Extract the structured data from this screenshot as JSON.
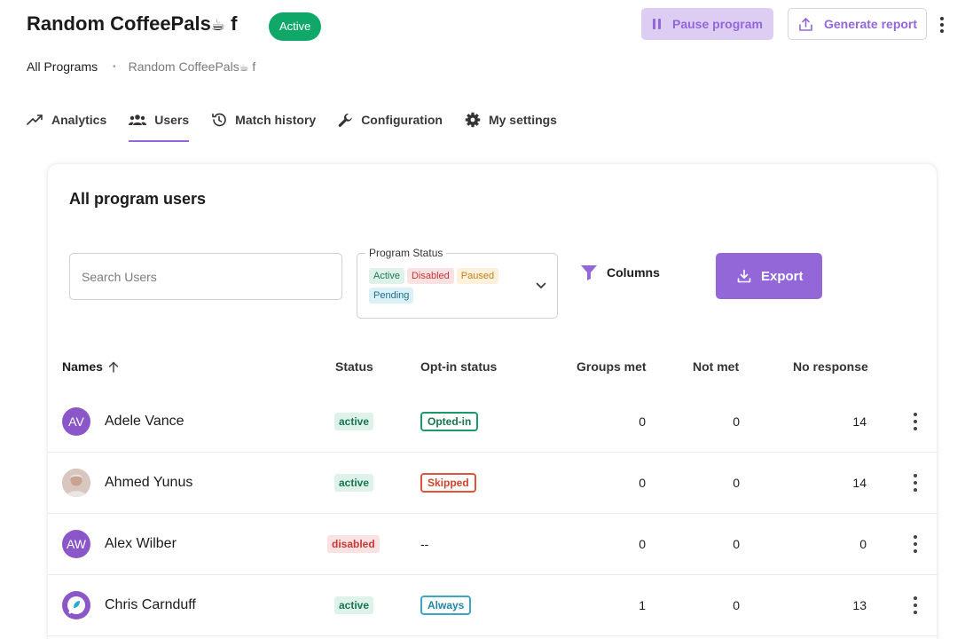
{
  "header": {
    "title": "Random CoffeePals",
    "title_emoji": "☕",
    "title_suffix": " f",
    "status_pill": "Active",
    "pause_label": "Pause program",
    "report_label": "Generate report"
  },
  "breadcrumb": {
    "root": "All Programs",
    "separator": "•",
    "current": "Random CoffeePals",
    "current_emoji": "☕",
    "current_suffix": " f"
  },
  "tabs": [
    {
      "label": "Analytics",
      "icon": "trend-up-icon"
    },
    {
      "label": "Users",
      "icon": "users-icon",
      "selected": true
    },
    {
      "label": "Match history",
      "icon": "history-icon"
    },
    {
      "label": "Configuration",
      "icon": "wrench-icon"
    },
    {
      "label": "My settings",
      "icon": "gear-icon"
    }
  ],
  "card": {
    "title": "All program users",
    "search_placeholder": "Search Users",
    "status_filter": {
      "label": "Program Status",
      "chips": [
        "Active",
        "Disabled",
        "Paused",
        "Pending"
      ]
    },
    "columns_label": "Columns",
    "export_label": "Export"
  },
  "table": {
    "headers": {
      "names": "Names",
      "status": "Status",
      "optin": "Opt-in status",
      "groups_met": "Groups met",
      "not_met": "Not met",
      "no_response": "No response"
    },
    "rows": [
      {
        "initials": "AV",
        "avatar": "initials",
        "name": "Adele Vance",
        "status": "active",
        "optin": "Opted-in",
        "groups_met": "0",
        "not_met": "0",
        "no_response": "14"
      },
      {
        "initials": "",
        "avatar": "photo",
        "name": "Ahmed Yunus",
        "status": "active",
        "optin": "Skipped",
        "groups_met": "0",
        "not_met": "0",
        "no_response": "14"
      },
      {
        "initials": "AW",
        "avatar": "initials",
        "name": "Alex Wilber",
        "status": "disabled",
        "optin": "--",
        "groups_met": "0",
        "not_met": "0",
        "no_response": "0"
      },
      {
        "initials": "",
        "avatar": "logo",
        "name": "Chris Carnduff",
        "status": "active",
        "optin": "Always",
        "groups_met": "1",
        "not_met": "0",
        "no_response": "13"
      }
    ]
  },
  "colors": {
    "accent": "#9367d8",
    "active_green": "#0fa869"
  }
}
